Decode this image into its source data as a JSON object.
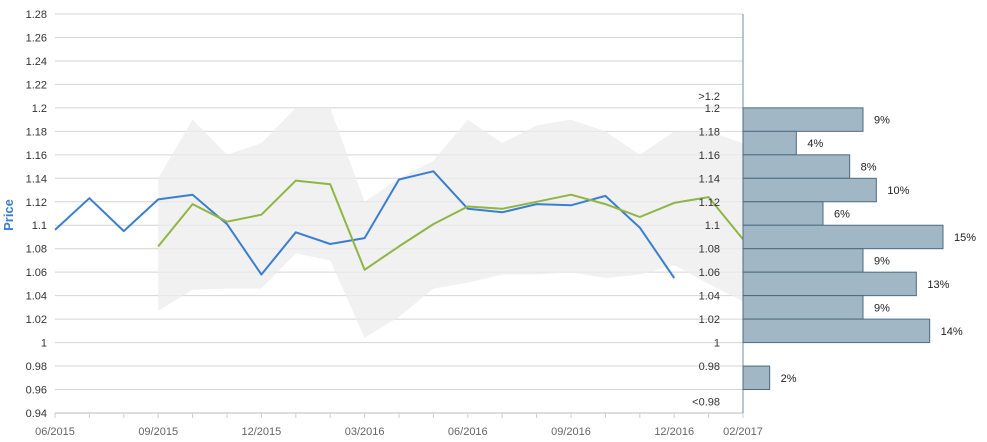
{
  "chart_data": {
    "type": "line",
    "ylabel": "Price",
    "ylim": [
      0.94,
      1.28
    ],
    "y_ticks": [
      "0.94",
      "0.96",
      "0.98",
      "1",
      "1.02",
      "1.04",
      "1.06",
      "1.08",
      "1.1",
      "1.12",
      "1.14",
      "1.16",
      "1.18",
      "1.2",
      "1.22",
      "1.24",
      "1.26",
      "1.28"
    ],
    "x_ticks": [
      "06/2015",
      "09/2015",
      "12/2015",
      "03/2016",
      "06/2016",
      "09/2016",
      "12/2016",
      "02/2017"
    ],
    "x_months": [
      "06/2015",
      "07/2015",
      "08/2015",
      "09/2015",
      "10/2015",
      "11/2015",
      "12/2015",
      "01/2016",
      "02/2016",
      "03/2016",
      "04/2016",
      "05/2016",
      "06/2016",
      "07/2016",
      "08/2016",
      "09/2016",
      "10/2016",
      "11/2016",
      "12/2016",
      "01/2017",
      "02/2017"
    ],
    "grid": true,
    "colors": {
      "actual": "#3a7fcf",
      "forecast": "#8fb545",
      "band": "#ececec",
      "hist_bar": "#a2b7c5",
      "hist_edge": "#4d6b80",
      "ylabel": "#3a7fcf"
    },
    "series": [
      {
        "key": "actual",
        "x": [
          "06/2015",
          "07/2015",
          "08/2015",
          "09/2015",
          "10/2015",
          "11/2015",
          "12/2015",
          "01/2016",
          "02/2016",
          "03/2016",
          "04/2016",
          "05/2016",
          "06/2016",
          "07/2016",
          "08/2016",
          "09/2016",
          "10/2016",
          "11/2016",
          "12/2016"
        ],
        "values": [
          1.096,
          1.123,
          1.095,
          1.122,
          1.126,
          1.101,
          1.058,
          1.094,
          1.084,
          1.089,
          1.139,
          1.146,
          1.114,
          1.111,
          1.118,
          1.117,
          1.125,
          1.098,
          1.055
        ]
      },
      {
        "key": "forecast",
        "x": [
          "09/2015",
          "10/2015",
          "11/2015",
          "12/2015",
          "01/2016",
          "02/2016",
          "03/2016",
          "04/2016",
          "05/2016",
          "06/2016",
          "07/2016",
          "08/2016",
          "09/2016",
          "10/2016",
          "11/2016",
          "12/2016",
          "01/2017",
          "02/2017"
        ],
        "values": [
          1.082,
          1.118,
          1.103,
          1.109,
          1.138,
          1.135,
          1.062,
          1.082,
          1.101,
          1.116,
          1.114,
          1.12,
          1.126,
          1.118,
          1.107,
          1.119,
          1.124,
          1.088
        ]
      }
    ],
    "band": {
      "x": [
        "09/2015",
        "10/2015",
        "11/2015",
        "12/2015",
        "01/2016",
        "02/2016",
        "03/2016",
        "04/2016",
        "05/2016",
        "06/2016",
        "07/2016",
        "08/2016",
        "09/2016",
        "10/2016",
        "11/2016",
        "12/2016",
        "01/2017",
        "02/2017"
      ],
      "upper": [
        1.14,
        1.19,
        1.16,
        1.17,
        1.2,
        1.2,
        1.12,
        1.14,
        1.155,
        1.19,
        1.17,
        1.185,
        1.19,
        1.18,
        1.16,
        1.18,
        1.18,
        1.17
      ],
      "lower": [
        1.027,
        1.045,
        1.046,
        1.046,
        1.076,
        1.07,
        1.004,
        1.022,
        1.046,
        1.051,
        1.058,
        1.058,
        1.06,
        1.055,
        1.058,
        1.066,
        1.05,
        1.035
      ]
    },
    "histogram": {
      "labels": [
        ">1.2",
        "1.2",
        "1.18",
        "1.16",
        "1.14",
        "1.12",
        "1.1",
        "1.08",
        "1.06",
        "1.04",
        "1.02",
        "1",
        "0.98",
        "<0.98"
      ],
      "bins": [
        {
          "from": 1.18,
          "to": 1.2,
          "pct": 9,
          "label": "9%"
        },
        {
          "from": 1.16,
          "to": 1.18,
          "pct": 4,
          "label": "4%"
        },
        {
          "from": 1.14,
          "to": 1.16,
          "pct": 8,
          "label": "8%"
        },
        {
          "from": 1.12,
          "to": 1.14,
          "pct": 10,
          "label": "10%"
        },
        {
          "from": 1.1,
          "to": 1.12,
          "pct": 6,
          "label": "6%"
        },
        {
          "from": 1.08,
          "to": 1.1,
          "pct": 15,
          "label": "15%"
        },
        {
          "from": 1.06,
          "to": 1.08,
          "pct": 9,
          "label": "9%"
        },
        {
          "from": 1.04,
          "to": 1.06,
          "pct": 13,
          "label": "13%"
        },
        {
          "from": 1.02,
          "to": 1.04,
          "pct": 9,
          "label": "9%"
        },
        {
          "from": 1.0,
          "to": 1.02,
          "pct": 14,
          "label": "14%"
        },
        {
          "from": 0.96,
          "to": 0.98,
          "pct": 2,
          "label": "2%"
        }
      ]
    }
  }
}
